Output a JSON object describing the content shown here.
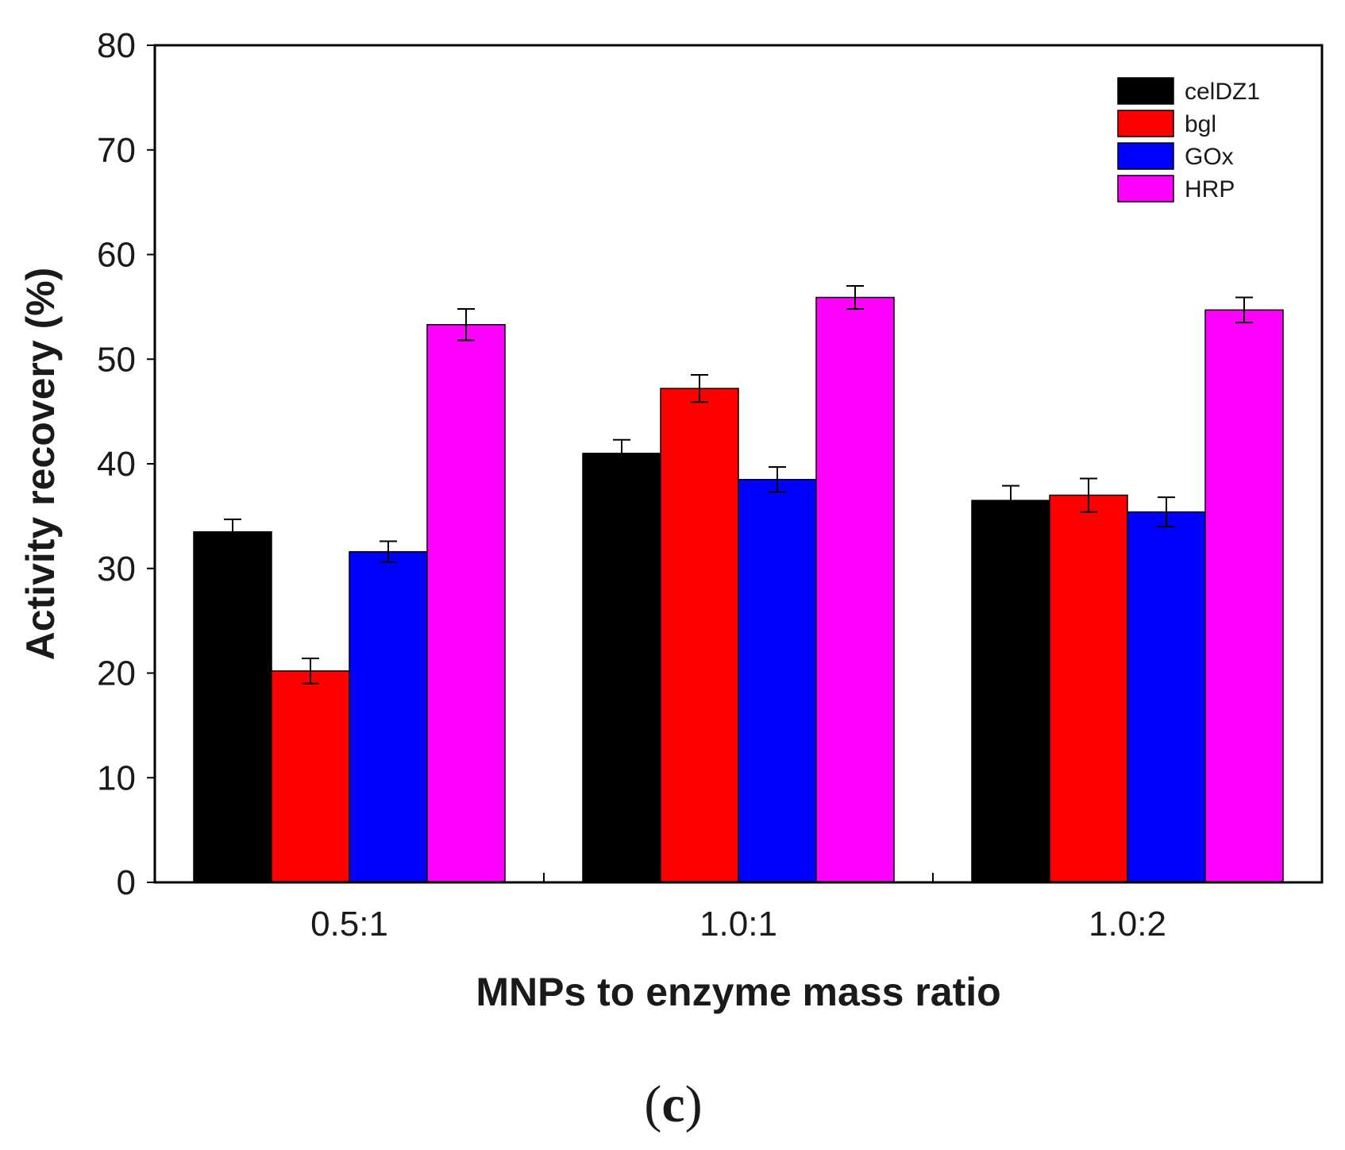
{
  "chart_data": {
    "type": "bar",
    "title": "",
    "xlabel": "MNPs to enzyme mass ratio",
    "ylabel": "Activity recovery (%)",
    "ylim": [
      0,
      80
    ],
    "yticks": [
      0,
      10,
      20,
      30,
      40,
      50,
      60,
      70,
      80
    ],
    "categories": [
      "0.5:1",
      "1.0:1",
      "1.0:2"
    ],
    "series": [
      {
        "name": "celDZ1",
        "color": "#000000",
        "values": [
          33.5,
          41.0,
          36.5
        ],
        "errors": [
          1.2,
          1.3,
          1.4
        ]
      },
      {
        "name": "bgl",
        "color": "#ff0000",
        "values": [
          20.2,
          47.2,
          37.0
        ],
        "errors": [
          1.2,
          1.3,
          1.6
        ]
      },
      {
        "name": "GOx",
        "color": "#0000ff",
        "values": [
          31.6,
          38.5,
          35.4
        ],
        "errors": [
          1.0,
          1.2,
          1.4
        ]
      },
      {
        "name": "HRP",
        "color": "#ff00ff",
        "values": [
          53.3,
          55.9,
          54.7
        ],
        "errors": [
          1.5,
          1.1,
          1.2
        ]
      }
    ],
    "legend_position": "top-right",
    "grid": false,
    "panel_label": {
      "open": "(",
      "letter": "c",
      "close": ")"
    }
  }
}
